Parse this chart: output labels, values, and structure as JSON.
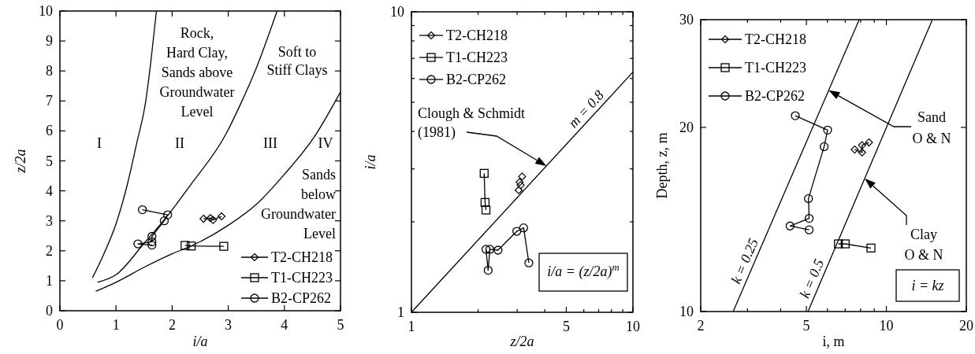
{
  "chart_data": [
    {
      "type": "line",
      "xlabel": "i/a",
      "ylabel": "z/2a",
      "xlim": [
        0,
        5
      ],
      "ylim": [
        0,
        10
      ],
      "xticks": [
        0,
        1,
        2,
        3,
        4,
        5
      ],
      "yticks": [
        0,
        1,
        2,
        3,
        4,
        5,
        6,
        7,
        8,
        9,
        10
      ],
      "legend": "bottom right",
      "series": [
        {
          "name": "T2-CH218",
          "color": "#000000",
          "marker": "diamond",
          "x": [
            2.56,
            2.68,
            2.73,
            2.88
          ],
          "values": [
            3.07,
            3.09,
            3.03,
            3.15
          ]
        },
        {
          "name": "T1-CH223",
          "color": "#000000",
          "marker": "square",
          "x": [
            2.23,
            2.34,
            2.92
          ],
          "values": [
            2.18,
            2.16,
            2.15
          ]
        },
        {
          "name": "B2-CP262",
          "color": "#000000",
          "marker": "circle",
          "x": [
            1.47,
            1.92,
            1.86,
            1.64,
            1.64,
            1.39,
            1.64
          ],
          "values": [
            3.37,
            3.2,
            3.0,
            2.48,
            2.3,
            2.23,
            2.19
          ]
        },
        {
          "color": "#000000",
          "marker": "none",
          "x": [
            0.58,
            0.76,
            1.0,
            1.2,
            1.37,
            1.53,
            1.62,
            1.72
          ],
          "values": [
            1.1,
            1.8,
            2.9,
            4.2,
            5.6,
            7.0,
            8.3,
            10
          ]
        },
        {
          "color": "#000000",
          "marker": "none",
          "x": [
            0.67,
            1.0,
            1.5,
            1.93,
            2.33,
            2.96,
            3.22,
            3.5,
            3.87
          ],
          "values": [
            0.95,
            1.2,
            2.25,
            3.2,
            4.2,
            5.9,
            6.9,
            8.1,
            10
          ]
        },
        {
          "color": "#000000",
          "marker": "none",
          "x": [
            0.64,
            1.0,
            1.5,
            2.0,
            2.35,
            3.0,
            3.5,
            4.0,
            4.55,
            5.0
          ],
          "values": [
            0.65,
            0.95,
            1.45,
            1.9,
            2.17,
            2.85,
            3.55,
            4.55,
            5.85,
            7.3
          ]
        }
      ],
      "annotations": [
        "I",
        "II",
        "III",
        "IV",
        "Rock,\nHard Clay,\nSands above\nGroundwater\nLevel",
        "Soft to\nStiff Clays",
        "Sands\nbelow\nGroundwater\nLevel"
      ]
    },
    {
      "type": "line",
      "xlabel": "z/2a",
      "ylabel": "i/a",
      "log": "xy",
      "xlim": [
        1,
        10
      ],
      "ylim": [
        1,
        10
      ],
      "xticks": [
        1,
        {
          "value": 2,
          "label": null
        },
        {
          "value": 3,
          "label": null
        },
        {
          "value": 4,
          "label": null
        },
        5,
        {
          "value": 6,
          "label": null
        },
        {
          "value": 7,
          "label": null
        },
        {
          "value": 8,
          "label": null
        },
        {
          "value": 9,
          "label": null
        },
        10
      ],
      "yticks": [
        1,
        {
          "value": 2,
          "label": null
        },
        {
          "value": 3,
          "label": null
        },
        {
          "value": 4,
          "label": null
        },
        {
          "value": 5,
          "label": null
        },
        {
          "value": 6,
          "label": null
        },
        {
          "value": 7,
          "label": null
        },
        {
          "value": 8,
          "label": null
        },
        {
          "value": 9,
          "label": null
        },
        10
      ],
      "legend": "top left",
      "series": [
        {
          "name": "T2-CH218",
          "type": "scatter",
          "color": "#000000",
          "marker": "diamond",
          "x": [
            3.05,
            3.08,
            3.11,
            3.16
          ],
          "values": [
            2.55,
            2.71,
            2.65,
            2.83
          ]
        },
        {
          "name": "T1-CH223",
          "color": "#000000",
          "marker": "square",
          "x": [
            2.17,
            2.15,
            2.13
          ],
          "values": [
            2.19,
            2.32,
            2.9
          ]
        },
        {
          "name": "B2-CP262",
          "color": "#000000",
          "marker": "circle",
          "x": [
            3.39,
            3.21,
            2.99,
            2.46,
            2.26,
            2.22,
            2.17
          ],
          "values": [
            1.46,
            1.91,
            1.86,
            1.61,
            1.62,
            1.38,
            1.62
          ]
        },
        {
          "name": "m = 0.8",
          "color": "#000000",
          "marker": "none",
          "x": [
            1,
            10
          ],
          "values": [
            1,
            6.3
          ]
        }
      ],
      "annotations": [
        {
          "text": "Clough & Schmidt\n(1981)",
          "x": 4.07,
          "y": 3.07
        },
        "i/a = (z/2a)$^{m}$"
      ]
    },
    {
      "type": "line",
      "xlabel": "i, m",
      "ylabel": "Depth, z, m",
      "log": "xy",
      "xlim": [
        2,
        20
      ],
      "ylim": [
        10,
        30
      ],
      "xticks": [
        2,
        {
          "value": 3,
          "label": null
        },
        {
          "value": 4,
          "label": null
        },
        5,
        {
          "value": 6,
          "label": null
        },
        {
          "value": 7,
          "label": null
        },
        {
          "value": 8,
          "label": null
        },
        {
          "value": 9,
          "label": null
        },
        10,
        20
      ],
      "yticks": [
        10,
        20,
        30
      ],
      "legend": "top left",
      "series": [
        {
          "name": "T2-CH218",
          "color": "#000000",
          "marker": "diamond",
          "x": [
            7.6,
            8.1,
            8.1,
            8.6
          ],
          "values": [
            18.4,
            18.2,
            18.7,
            18.9
          ]
        },
        {
          "name": "T1-CH223",
          "color": "#000000",
          "marker": "square",
          "x": [
            6.6,
            7.0,
            8.75
          ],
          "values": [
            12.9,
            12.9,
            12.7
          ]
        },
        {
          "name": "B2-CP262",
          "color": "#000000",
          "marker": "circle",
          "x": [
            4.54,
            6.01,
            5.83,
            5.09,
            5.12,
            4.34,
            5.12
          ],
          "values": [
            20.9,
            19.8,
            18.6,
            15.3,
            14.2,
            13.8,
            13.6
          ]
        },
        {
          "name": "k = 0.25",
          "color": "#000000",
          "marker": "none",
          "x": [
            2.65,
            7.9
          ],
          "values": [
            10,
            30
          ]
        },
        {
          "name": "k = 0.5",
          "color": "#000000",
          "marker": "none",
          "x": [
            5.07,
            14.9
          ],
          "values": [
            10,
            30
          ]
        }
      ],
      "annotations": [
        "Sand\nO & N",
        "Clay\nO & N",
        "i = kz"
      ]
    }
  ]
}
